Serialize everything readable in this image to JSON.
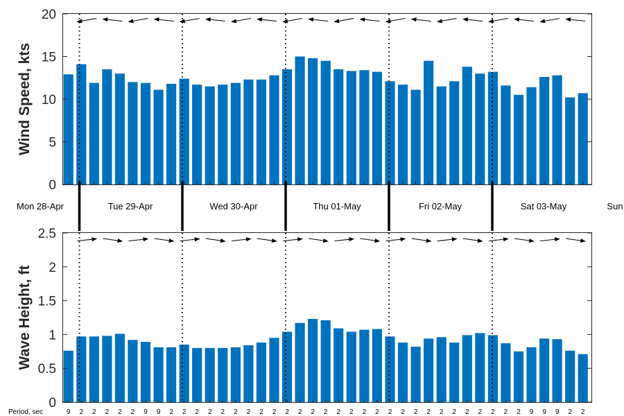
{
  "colors": {
    "bar": "#0072BD",
    "axis": "#262626",
    "arrow": "#000000"
  },
  "chart_data": [
    {
      "type": "bar",
      "title": "",
      "xlabel": "",
      "ylabel": "Wind Speed, kts",
      "ylim": [
        0,
        20
      ],
      "yticks": [
        "0",
        "5",
        "10",
        "15",
        "20"
      ],
      "values": [
        12.9,
        14.1,
        11.9,
        13.5,
        13.0,
        12.0,
        11.9,
        11.1,
        11.8,
        12.4,
        11.7,
        11.5,
        11.7,
        11.9,
        12.3,
        12.3,
        12.8,
        13.5,
        15.0,
        14.8,
        14.5,
        13.5,
        13.3,
        13.4,
        13.2,
        12.1,
        11.7,
        11.1,
        14.5,
        11.5,
        12.1,
        13.8,
        13.0,
        13.2,
        11.6,
        10.5,
        11.4,
        12.6,
        12.8,
        10.2,
        10.7
      ],
      "direction_arrows": "blowing-left"
    },
    {
      "type": "bar",
      "title": "",
      "xlabel": "",
      "ylabel": "Wave Height, ft",
      "ylim": [
        0,
        2.5
      ],
      "yticks": [
        "0",
        "0.5",
        "1",
        "1.5",
        "2",
        "2.5"
      ],
      "values": [
        0.76,
        0.97,
        0.97,
        0.98,
        1.01,
        0.92,
        0.89,
        0.81,
        0.81,
        0.85,
        0.8,
        0.8,
        0.8,
        0.81,
        0.84,
        0.88,
        0.95,
        1.04,
        1.17,
        1.23,
        1.21,
        1.09,
        1.04,
        1.07,
        1.08,
        0.97,
        0.88,
        0.82,
        0.94,
        0.96,
        0.88,
        0.99,
        1.02,
        0.99,
        0.87,
        0.75,
        0.81,
        0.94,
        0.93,
        0.76,
        0.71
      ],
      "direction_arrows": "pointing-right",
      "period_label": "Period, sec",
      "periods": [
        "9",
        "2",
        "2",
        "2",
        "2",
        "2",
        "9",
        "9",
        "2",
        "2",
        "2",
        "2",
        "2",
        "2",
        "2",
        "2",
        "2",
        "2",
        "2",
        "2",
        "2",
        "2",
        "2",
        "2",
        "2",
        "2",
        "2",
        "2",
        "2",
        "2",
        "2",
        "2",
        "2",
        "2",
        "2",
        "2",
        "9",
        "9",
        "9",
        "2",
        "2"
      ]
    }
  ],
  "days": [
    "Mon 28-Apr",
    "Tue 29-Apr",
    "Wed 30-Apr",
    "Thu 01-May",
    "Fri 02-May",
    "Sat 03-May",
    "Sun"
  ]
}
